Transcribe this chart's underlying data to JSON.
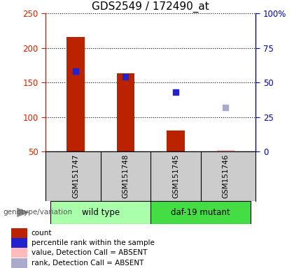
{
  "title": "GDS2549 / 172490_at",
  "samples": [
    "GSM151747",
    "GSM151748",
    "GSM151745",
    "GSM151746"
  ],
  "count_values": [
    216,
    163,
    80,
    52
  ],
  "count_absent": [
    false,
    false,
    false,
    true
  ],
  "rank_values": [
    166,
    158,
    136,
    114
  ],
  "rank_absent": [
    false,
    false,
    false,
    true
  ],
  "ylim_left": [
    50,
    250
  ],
  "ylim_right": [
    0,
    100
  ],
  "yticks_left": [
    50,
    100,
    150,
    200,
    250
  ],
  "yticks_right": [
    0,
    25,
    50,
    75,
    100
  ],
  "ytick_labels_right": [
    "0",
    "25",
    "50",
    "75",
    "100%"
  ],
  "bar_color_present": "#BB2200",
  "bar_color_absent": "#FFBBBB",
  "rank_color_present": "#2222CC",
  "rank_color_absent": "#AAAACC",
  "bar_width": 0.35,
  "group_label": "genotype/variation",
  "wt_color": "#AAFFAA",
  "daf_color": "#44DD44",
  "sample_bg": "#CCCCCC",
  "legend_items": [
    {
      "label": "count",
      "color": "#BB2200"
    },
    {
      "label": "percentile rank within the sample",
      "color": "#2222CC"
    },
    {
      "label": "value, Detection Call = ABSENT",
      "color": "#FFBBBB"
    },
    {
      "label": "rank, Detection Call = ABSENT",
      "color": "#AAAACC"
    }
  ],
  "plot_bg_color": "#FFFFFF",
  "axis_left_color": "#CC2200",
  "axis_right_color": "#0000BB",
  "title_fontsize": 11
}
